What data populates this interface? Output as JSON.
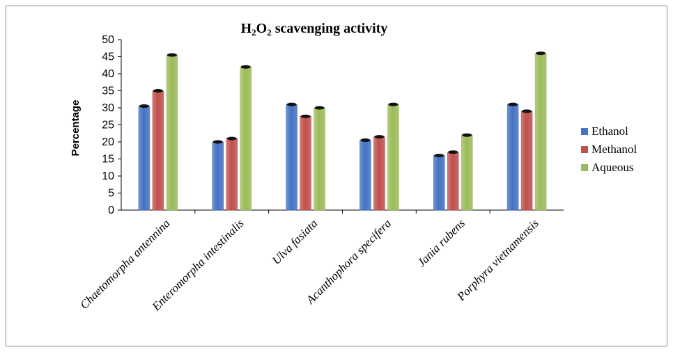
{
  "chart_data": {
    "type": "bar",
    "title_main": "H",
    "title_sub1": "2",
    "title_mid": "O",
    "title_sub2": "2",
    "title_rest": " scavenging activity",
    "ylabel": "Percentage",
    "xlabel": "",
    "ylim": [
      0,
      50
    ],
    "ytick_step": 5,
    "categories": [
      "Chaetomorpha antennina",
      "Enteromorpha intestinalis",
      "Ulva fasiata",
      "Acanthophora specifera",
      "Jania rubens",
      "Porphyra vietnamensis"
    ],
    "series": [
      {
        "name": "Ethanol",
        "color": "#4472c4",
        "values": [
          30.5,
          20,
          31,
          20.5,
          16,
          31
        ]
      },
      {
        "name": "Methanol",
        "color": "#c0504d",
        "values": [
          35,
          21,
          27.5,
          21.5,
          17,
          29
        ]
      },
      {
        "name": "Aqueous",
        "color": "#9bbb59",
        "values": [
          45.5,
          42,
          30,
          31,
          22,
          46
        ]
      }
    ],
    "grid": false,
    "legend_position": "right"
  }
}
